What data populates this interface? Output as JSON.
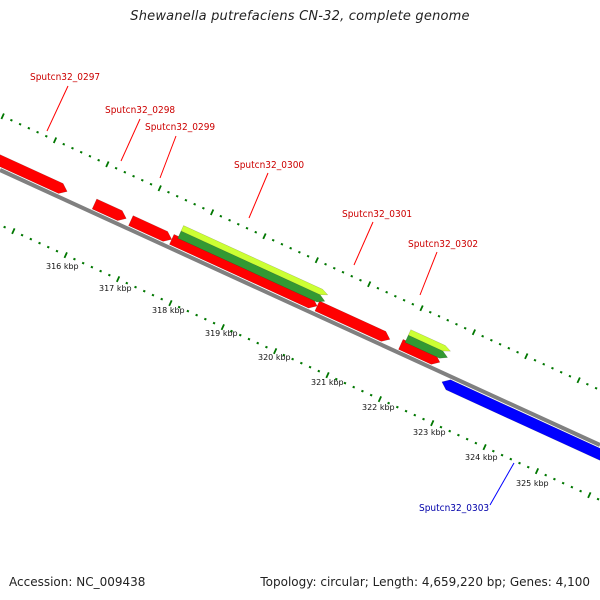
{
  "title": "Shewanella putrefaciens CN-32, complete genome",
  "footer": {
    "accession": "Accession: NC_009438",
    "summary": "Topology: circular; Length: 4,659,220 bp; Genes: 4,100"
  },
  "colors": {
    "forward_gene": "#ff0000",
    "reverse_gene": "#0000ff",
    "rna_outer": "#ccff33",
    "rna_inner": "#339933",
    "backbone": "#808080",
    "ticks": "#007700",
    "forward_label": "#cc0000",
    "reverse_label": "#0000aa"
  },
  "scale_ticks": [
    {
      "label": "316 kbp"
    },
    {
      "label": "317 kbp"
    },
    {
      "label": "318 kbp"
    },
    {
      "label": "319 kbp"
    },
    {
      "label": "320 kbp"
    },
    {
      "label": "321 kbp"
    },
    {
      "label": "322 kbp"
    },
    {
      "label": "323 kbp"
    },
    {
      "label": "324 kbp"
    },
    {
      "label": "325 kbp"
    }
  ],
  "genes": [
    {
      "name": "Sputcn32_0297",
      "strand": "forward"
    },
    {
      "name": "Sputcn32_0298",
      "strand": "forward"
    },
    {
      "name": "Sputcn32_0299",
      "strand": "forward"
    },
    {
      "name": "Sputcn32_0300",
      "strand": "forward"
    },
    {
      "name": "Sputcn32_0301",
      "strand": "forward"
    },
    {
      "name": "Sputcn32_0302",
      "strand": "forward"
    },
    {
      "name": "Sputcn32_0303",
      "strand": "reverse"
    }
  ]
}
